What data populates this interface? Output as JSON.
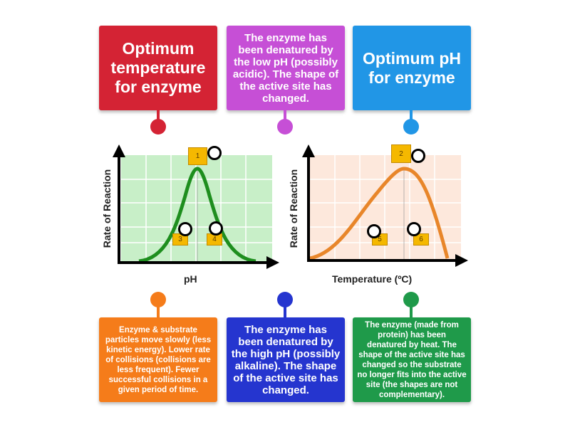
{
  "top_cards": [
    {
      "text": "Optimum temperature for enzyme",
      "color": "#d42334"
    },
    {
      "text": "The enzyme has been denatured by the low pH (possibly acidic). The shape of the active site has changed.",
      "color": "#c64fd6"
    },
    {
      "text": "Optimum pH for enzyme",
      "color": "#2196e6"
    }
  ],
  "bottom_cards": [
    {
      "text": "Enzyme & substrate particles move slowly (less kinetic energy). Lower rate of collisions (collisions are less frequent). Fewer successful collisions in a given period of time.",
      "color": "#f57c1a"
    },
    {
      "text": "The enzyme has been denatured by the high pH (possibly alkaline). The shape of the active site has changed.",
      "color": "#2535cf"
    },
    {
      "text": "The enzyme (made from protein) has been denatured by heat. The shape of the active site has changed so the substrate no longer fits into the active site (the shapes are not complementary).",
      "color": "#1f9a4a"
    }
  ],
  "graphs": {
    "ph": {
      "ylabel": "Rate of Reaction",
      "xlabel": "pH"
    },
    "temperature": {
      "ylabel": "Rate of Reaction",
      "xlabel": "Temperature (ºC)"
    }
  },
  "markers": [
    "1",
    "2",
    "3",
    "4",
    "5",
    "6"
  ]
}
